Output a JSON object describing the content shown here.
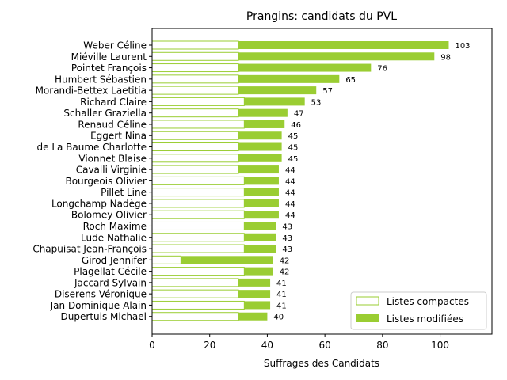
{
  "chart_data": {
    "type": "bar",
    "orientation": "horizontal",
    "stacked": true,
    "title": "Prangins: candidats du PVL",
    "xlabel": "Suffrages des Candidats",
    "ylabel": "",
    "xlim": [
      0,
      118
    ],
    "xticks": [
      0,
      20,
      40,
      60,
      80,
      100
    ],
    "grid": false,
    "legend_position": "lower-right",
    "colors": {
      "compact_edge": "#9acd32",
      "compact_fill": "#ffffff",
      "modified": "#9acd32"
    },
    "categories": [
      "Weber Céline",
      "Miéville Laurent",
      "Pointet François",
      "Humbert Sébastien",
      "Morandi-Bettex Laetitia",
      "Richard Claire",
      "Schaller Graziella",
      "Renaud Céline",
      "Eggert Nina",
      "de La Baume Charlotte",
      "Vionnet Blaise",
      "Cavalli Virginie",
      "Bourgeois Olivier",
      "Pillet Line",
      "Longchamp Nadège",
      "Bolomey Olivier",
      "Roch Maxime",
      "Lude Nathalie",
      "Chapuisat Jean-François",
      "Girod Jennifer",
      "Plagellat Cécile",
      "Jaccard Sylvain",
      "Diserens Véronique",
      "Jan Dominique-Alain",
      "Dupertuis Michael"
    ],
    "series": [
      {
        "name": "Listes compactes",
        "values": [
          30,
          30,
          30,
          30,
          30,
          32,
          30,
          32,
          30,
          30,
          30,
          30,
          32,
          32,
          32,
          32,
          32,
          32,
          32,
          10,
          32,
          30,
          30,
          32,
          30
        ]
      },
      {
        "name": "Listes modifiées",
        "values": [
          73,
          68,
          46,
          35,
          27,
          21,
          17,
          14,
          15,
          15,
          15,
          14,
          12,
          12,
          12,
          12,
          11,
          11,
          11,
          32,
          10,
          11,
          11,
          9,
          10
        ]
      }
    ],
    "totals": [
      "103",
      "98",
      "76",
      "65",
      "57",
      "53",
      "47",
      "46",
      "45",
      "45",
      "45",
      "44",
      "44",
      "44",
      "44",
      "44",
      "43",
      "43",
      "43",
      "42",
      "42",
      "41",
      "41",
      "41",
      "40"
    ]
  }
}
